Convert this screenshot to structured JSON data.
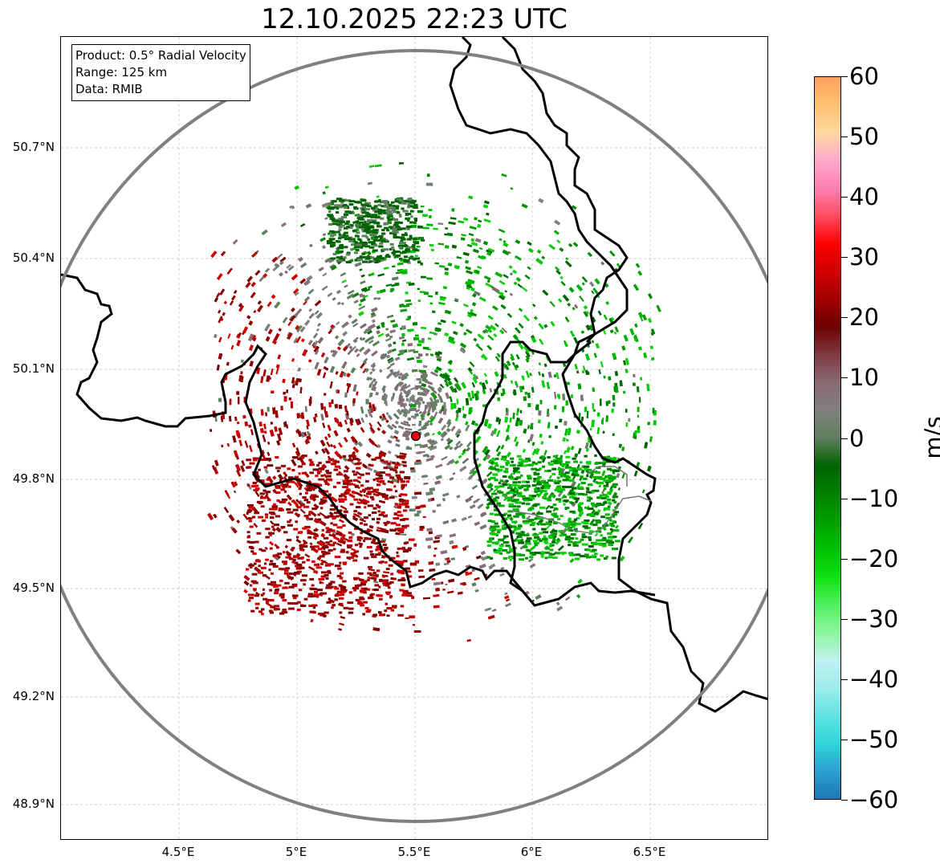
{
  "title": "12.10.2025 22:23 UTC",
  "info": {
    "product": "Product: 0.5° Radial Velocity",
    "range": "Range: 125 km",
    "data": "Data: RMIB"
  },
  "axes": {
    "lat_labels": [
      "50.7°N",
      "50.4°N",
      "50.1°N",
      "49.8°N",
      "49.5°N",
      "49.2°N",
      "48.9°N"
    ],
    "lon_labels": [
      "4.5°E",
      "5°E",
      "5.5°E",
      "6°E",
      "6.5°E"
    ]
  },
  "colorbar": {
    "unit": "m/s",
    "ticks": [
      "60",
      "50",
      "40",
      "30",
      "20",
      "10",
      "0",
      "−10",
      "−20",
      "−30",
      "−40",
      "−50",
      "−60"
    ],
    "range": [
      -60,
      60
    ],
    "stops": [
      "#1f77b4",
      "#2a9fd0",
      "#30d5d8",
      "#5fe3e3",
      "#9fecec",
      "#c0f0f0",
      "#8ef5a0",
      "#50f060",
      "#10e010",
      "#00c000",
      "#00a000",
      "#008000",
      "#006400",
      "#5f7f5f",
      "#80807f",
      "#8a6a72",
      "#7f3a44",
      "#700000",
      "#a00000",
      "#d00000",
      "#ff0000",
      "#ff4d60",
      "#ff80b0",
      "#ffaacc",
      "#ffd8a0",
      "#ffc070",
      "#ffa060"
    ]
  },
  "radar": {
    "site_marker": "radar-site"
  },
  "colors": {
    "range_ring": "#808080",
    "border": "#000000",
    "grid": "#b0b0b0"
  }
}
